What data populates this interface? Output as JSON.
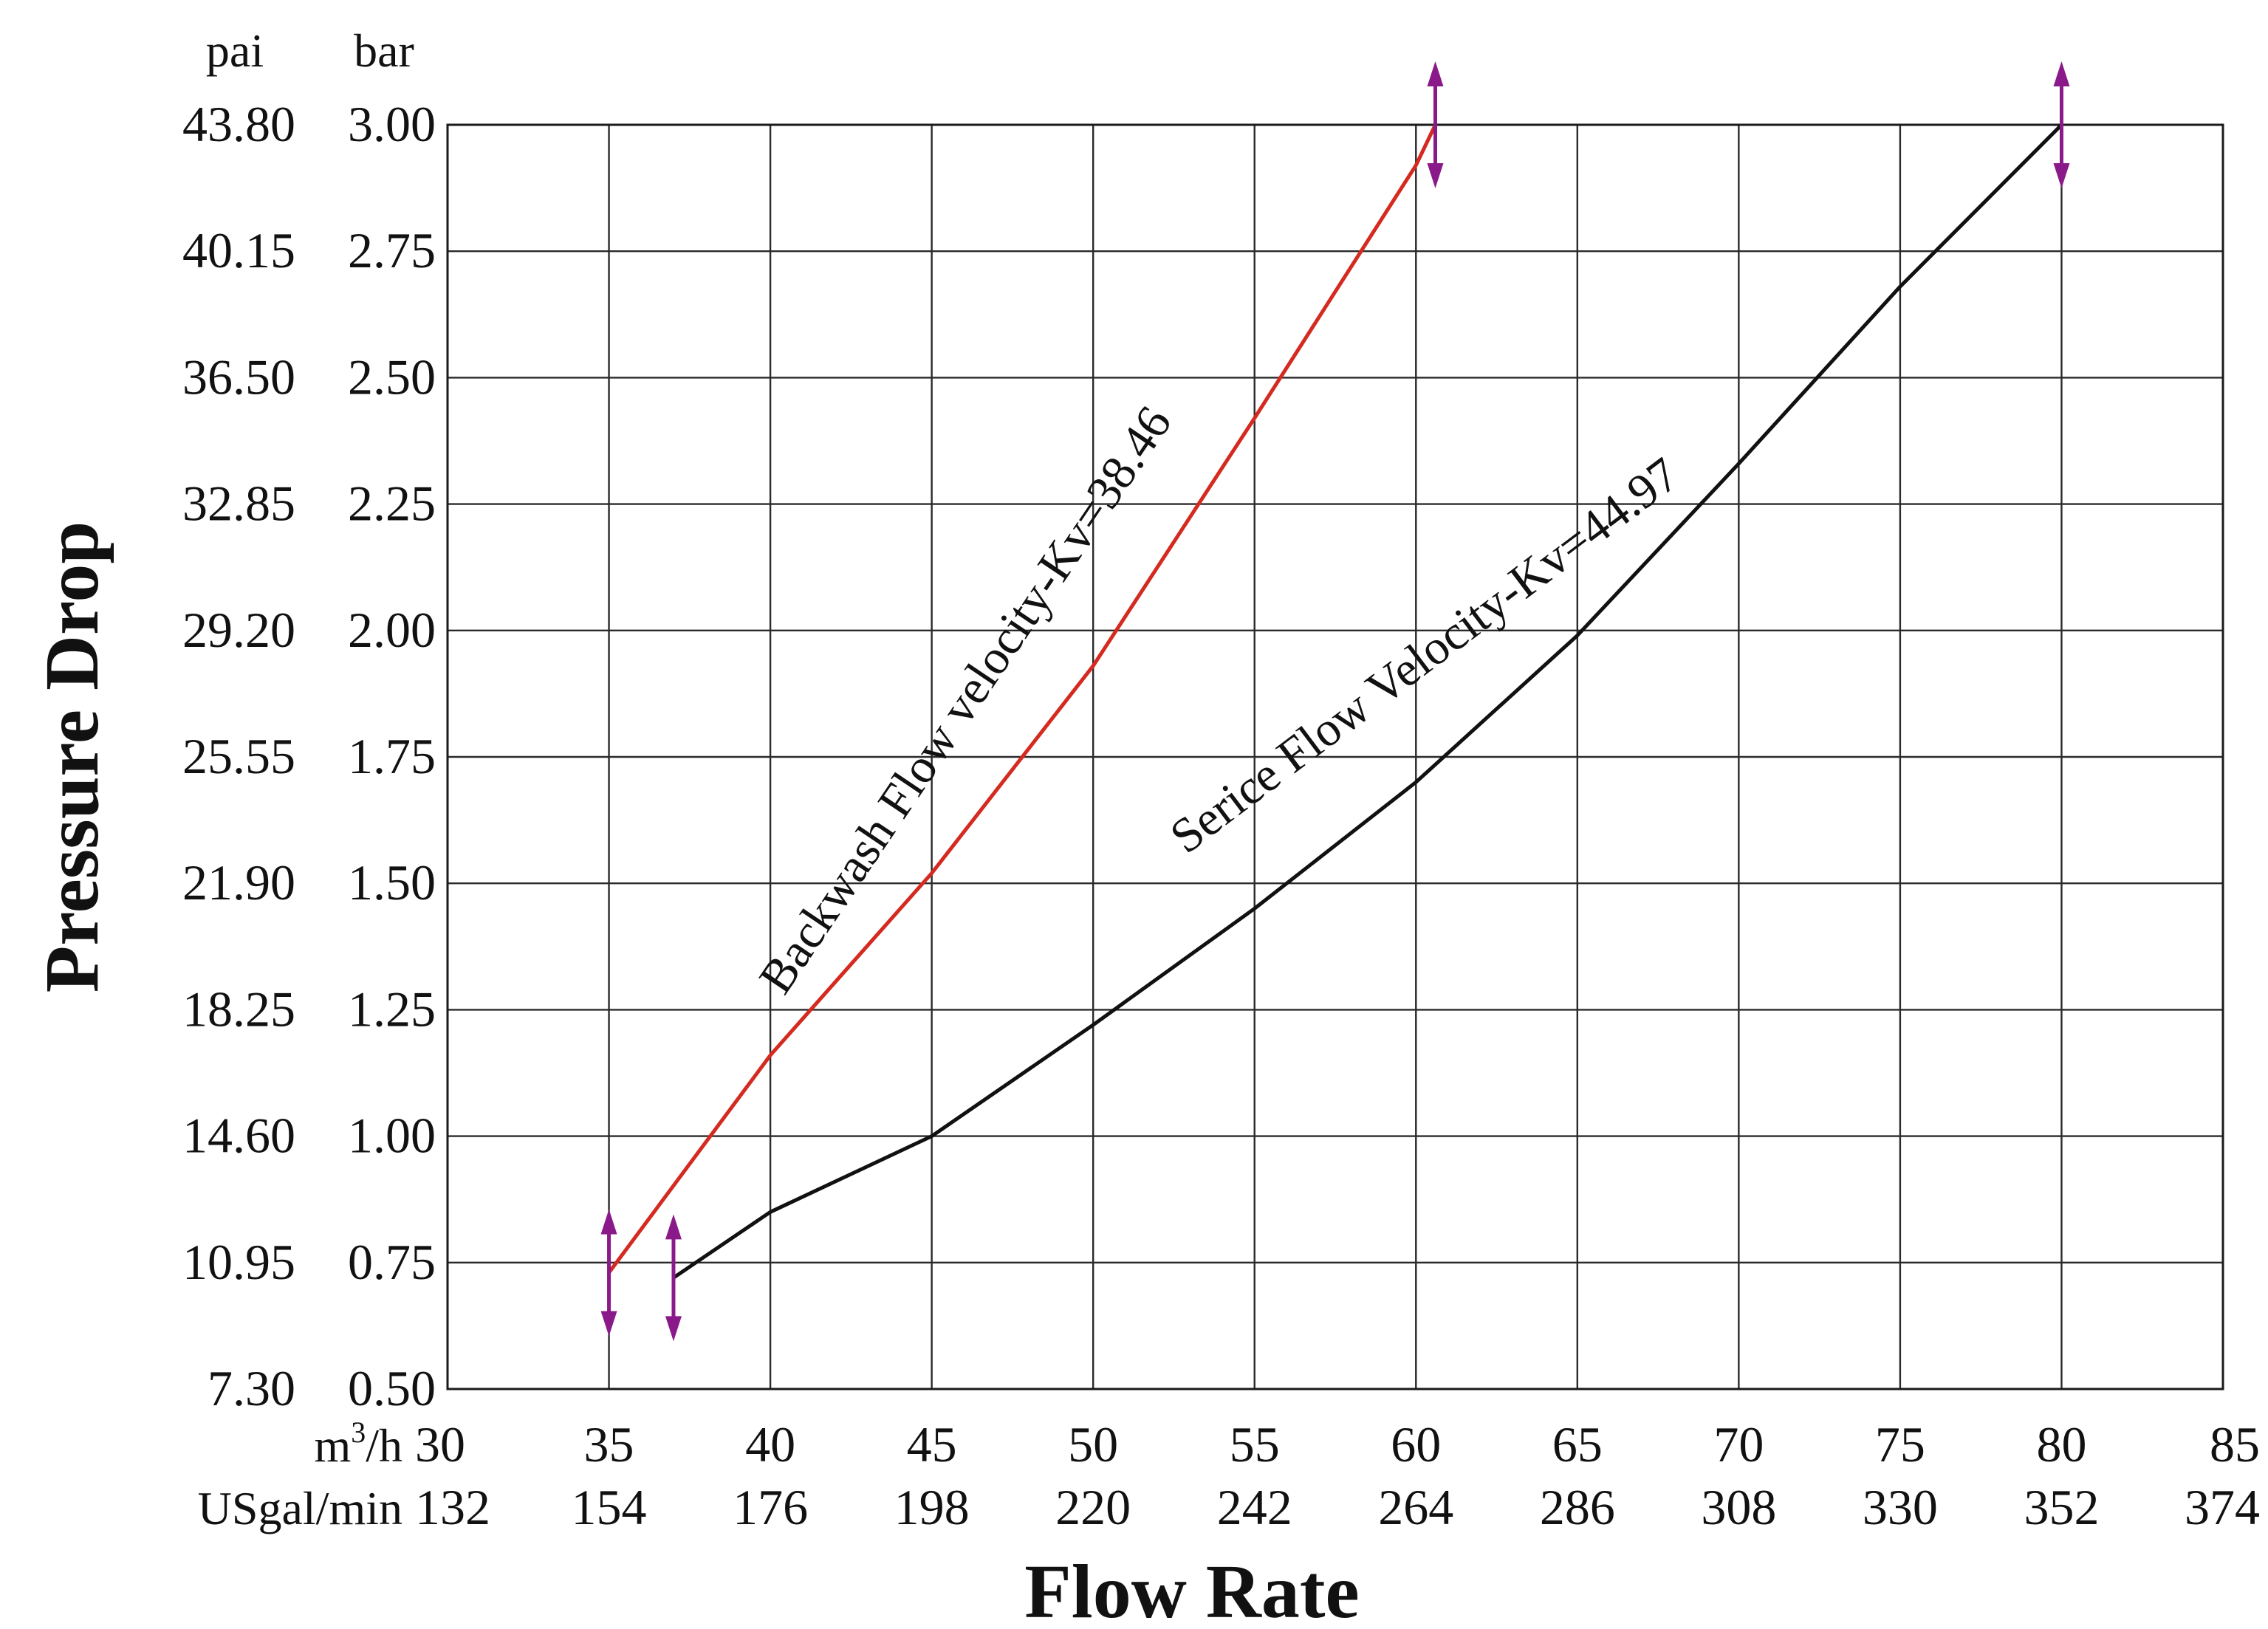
{
  "chart_data": {
    "type": "line",
    "xlabel": "Flow Rate",
    "ylabel": "Pressure Drop",
    "xlim": [
      30,
      85
    ],
    "ylim": [
      0.5,
      3.0
    ],
    "grid": true,
    "x_axes": [
      {
        "unit": "m",
        "unit_sup": "3",
        "unit_suffix": "/h",
        "ticks": [
          "30",
          "35",
          "40",
          "45",
          "50",
          "55",
          "60",
          "65",
          "70",
          "75",
          "80",
          "85"
        ],
        "values": [
          30,
          35,
          40,
          45,
          50,
          55,
          60,
          65,
          70,
          75,
          80,
          85
        ]
      },
      {
        "unit": "USgal/min",
        "ticks": [
          "132",
          "154",
          "176",
          "198",
          "220",
          "242",
          "264",
          "286",
          "308",
          "330",
          "352",
          "374"
        ]
      }
    ],
    "y_axes": [
      {
        "unit": "pai",
        "ticks": [
          "7.30",
          "10.95",
          "14.60",
          "18.25",
          "21.90",
          "25.55",
          "29.20",
          "32.85",
          "36.50",
          "40.15",
          "43.80"
        ]
      },
      {
        "unit": "bar",
        "ticks": [
          "0.50",
          "0.75",
          "1.00",
          "1.25",
          "1.50",
          "1.75",
          "2.00",
          "2.25",
          "2.50",
          "2.75",
          "3.00"
        ],
        "values": [
          0.5,
          0.75,
          1.0,
          1.25,
          1.5,
          1.75,
          2.0,
          2.25,
          2.5,
          2.75,
          3.0
        ]
      }
    ],
    "series": [
      {
        "name": "Backwash Flow velocity-Kv=38.46",
        "color": "#d42a20",
        "x": [
          35,
          40,
          45,
          50,
          55,
          60,
          60.6
        ],
        "y": [
          0.73,
          1.16,
          1.52,
          1.93,
          2.42,
          2.92,
          3.0
        ],
        "range_markers": [
          35,
          60.6
        ]
      },
      {
        "name": "Serice Flow Velocity-Kv=44.97",
        "color": "#111111",
        "x": [
          37,
          40,
          45,
          50,
          55,
          60,
          65,
          70,
          75,
          80
        ],
        "y": [
          0.72,
          0.85,
          1.0,
          1.22,
          1.45,
          1.7,
          1.99,
          2.33,
          2.68,
          3.0
        ],
        "range_markers": [
          37,
          80
        ]
      }
    ],
    "marker_color": "#8a1a8a"
  }
}
